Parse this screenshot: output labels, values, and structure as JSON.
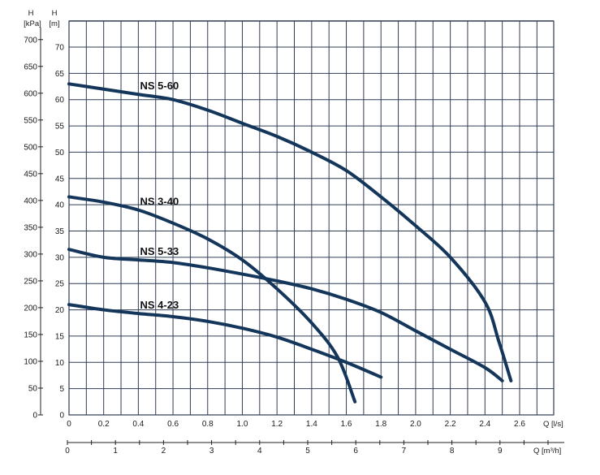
{
  "chart_data": {
    "type": "line",
    "title": "",
    "grid": true,
    "xlabel": "Q [l/s]",
    "x2label": "Q [m³/h]",
    "ylabel_kpa_unit": "H",
    "ylabel_kpa_sub": "[kPa]",
    "ylabel_m_unit": "H",
    "ylabel_m_sub": "[m]",
    "xlim": [
      0,
      2.8
    ],
    "ylim_m": [
      0,
      75
    ],
    "ylim_kpa": [
      0,
      735
    ],
    "x_ticks": [
      "0",
      "0.2",
      "0.4",
      "0.6",
      "0.8",
      "1.0",
      "1.2",
      "1.4",
      "1.6",
      "1.8",
      "2.0",
      "2.2",
      "2.4",
      "2.6"
    ],
    "x2_ticks": [
      "0",
      "1",
      "2",
      "3",
      "4",
      "5",
      "6",
      "7",
      "8",
      "9"
    ],
    "y_m_ticks": [
      "0",
      "5",
      "10",
      "15",
      "20",
      "25",
      "30",
      "35",
      "40",
      "45",
      "50",
      "55",
      "60",
      "65",
      "70"
    ],
    "y_kpa_ticks": [
      "0",
      "50",
      "100",
      "150",
      "200",
      "250",
      "300",
      "350",
      "400",
      "450",
      "500",
      "550",
      "600",
      "650",
      "700"
    ],
    "line_color": "#14365a",
    "grid_color": "#2f3d54",
    "series": [
      {
        "name": "NS 5-60",
        "points": [
          [
            0,
            63.0
          ],
          [
            0.2,
            62.0
          ],
          [
            0.4,
            61.0
          ],
          [
            0.6,
            60.0
          ],
          [
            0.8,
            58.0
          ],
          [
            1.0,
            55.5
          ],
          [
            1.2,
            53.0
          ],
          [
            1.4,
            50.0
          ],
          [
            1.6,
            46.5
          ],
          [
            1.8,
            41.5
          ],
          [
            2.0,
            36.0
          ],
          [
            2.2,
            30.0
          ],
          [
            2.4,
            21.5
          ],
          [
            2.48,
            14.0
          ],
          [
            2.55,
            6.5
          ]
        ]
      },
      {
        "name": "NS 3-40",
        "points": [
          [
            0,
            41.5
          ],
          [
            0.2,
            40.5
          ],
          [
            0.4,
            39.0
          ],
          [
            0.6,
            36.5
          ],
          [
            0.8,
            33.5
          ],
          [
            1.0,
            29.5
          ],
          [
            1.2,
            24.0
          ],
          [
            1.4,
            17.5
          ],
          [
            1.55,
            11.0
          ],
          [
            1.65,
            2.5
          ]
        ]
      },
      {
        "name": "NS 5-33",
        "points": [
          [
            0,
            31.5
          ],
          [
            0.2,
            30.0
          ],
          [
            0.4,
            29.5
          ],
          [
            0.6,
            29.0
          ],
          [
            0.8,
            28.0
          ],
          [
            1.0,
            26.8
          ],
          [
            1.2,
            25.5
          ],
          [
            1.4,
            24.0
          ],
          [
            1.6,
            22.0
          ],
          [
            1.8,
            19.5
          ],
          [
            2.0,
            16.0
          ],
          [
            2.2,
            12.5
          ],
          [
            2.4,
            9.0
          ],
          [
            2.5,
            6.5
          ]
        ]
      },
      {
        "name": "NS 4-23",
        "points": [
          [
            0,
            21.0
          ],
          [
            0.2,
            20.0
          ],
          [
            0.4,
            19.3
          ],
          [
            0.6,
            18.7
          ],
          [
            0.8,
            17.8
          ],
          [
            1.0,
            16.5
          ],
          [
            1.2,
            14.8
          ],
          [
            1.4,
            12.5
          ],
          [
            1.6,
            10.0
          ],
          [
            1.8,
            7.2
          ]
        ]
      }
    ]
  }
}
